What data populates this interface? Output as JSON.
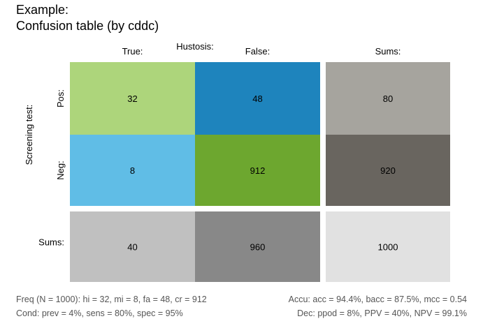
{
  "title": {
    "line1": "Example:",
    "line2": "Confusion table (by cddc)"
  },
  "chart_data": {
    "type": "table",
    "column_dimension": "Hustosis:",
    "row_dimension": "Screening test:",
    "column_labels": [
      "True:",
      "False:",
      "Sums:"
    ],
    "row_labels": [
      "Pos:",
      "Neg:",
      "Sums:"
    ],
    "cells": [
      [
        32,
        48,
        80
      ],
      [
        8,
        912,
        920
      ],
      [
        40,
        960,
        1000
      ]
    ],
    "colors": [
      [
        "#add57b",
        "#1e84bd",
        "#a6a49e"
      ],
      [
        "#60bde6",
        "#6da72f",
        "#69655f"
      ],
      [
        "#c0c0c0",
        "#888888",
        "#e1e1e1"
      ]
    ]
  },
  "footer": {
    "left_line1": "Freq (N = 1000):  hi = 32, mi = 8, fa = 48, cr = 912",
    "left_line2": "Cond:  prev = 4%, sens = 80%, spec = 95%",
    "right_line1": "Accu:  acc = 94.4%, bacc = 87.5%, mcc = 0.54",
    "right_line2": "Dec:  ppod = 8%, PPV = 40%, NPV = 99.1%"
  }
}
